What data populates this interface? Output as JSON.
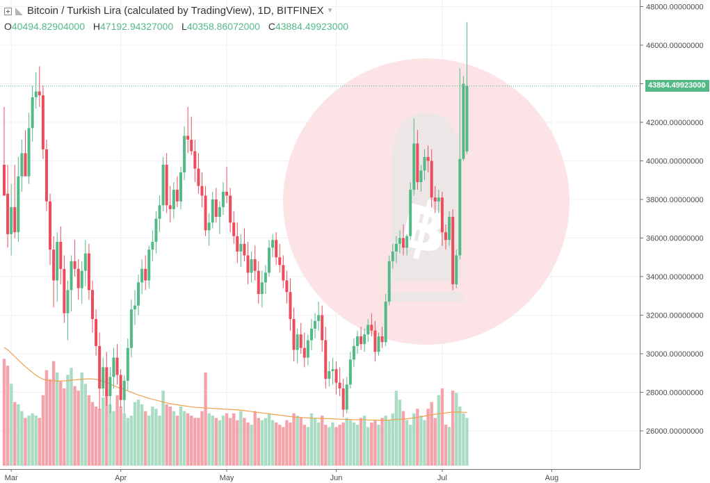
{
  "header": {
    "title": "Bitcoin / Turkish Lira (calculated by TradingView), 1D, BITFINEX",
    "ohlc": [
      {
        "label": "O",
        "value": "40494.82904000"
      },
      {
        "label": "H",
        "value": "47192.94327000"
      },
      {
        "label": "L",
        "value": "40358.86072000"
      },
      {
        "label": "C",
        "value": "43884.49923000"
      }
    ]
  },
  "colors": {
    "up": "#53b987",
    "down": "#eb4d5c",
    "vol_up": "#a9dcc3",
    "vol_down": "#f5a3ab",
    "ma": "#f2a04a",
    "grid": "#eef0f3",
    "watermark": "#fce4e6",
    "price_line": "#53b987"
  },
  "icons": [
    "collapse-icon",
    "visibility-icon",
    "caret-down-icon",
    "bitcoin-watermark-icon"
  ],
  "last_price_label": "43884.49923000",
  "chart_data": {
    "type": "candlestick",
    "title": "Bitcoin / Turkish Lira (calculated by TradingView), 1D, BITFINEX",
    "ylim": [
      24500,
      48500
    ],
    "yticks": [
      "48000.00000000",
      "46000.00000000",
      "44000.00000000",
      "42000.00000000",
      "40000.00000000",
      "38000.00000000",
      "36000.00000000",
      "34000.00000000",
      "32000.00000000",
      "30000.00000000",
      "28000.00000000",
      "26000.00000000"
    ],
    "ytick_values": [
      48000,
      46000,
      44000,
      42000,
      40000,
      38000,
      36000,
      34000,
      32000,
      30000,
      28000,
      26000
    ],
    "xticks": [
      {
        "label": "Mar",
        "day": 2
      },
      {
        "label": "Apr",
        "day": 33
      },
      {
        "label": "May",
        "day": 63
      },
      {
        "label": "Jun",
        "day": 94
      },
      {
        "label": "Jul",
        "day": 124
      },
      {
        "label": "Aug",
        "day": 155
      }
    ],
    "grid": true,
    "last_price": 43884.49923,
    "candles": [
      [
        39800,
        42800,
        38300,
        38200
      ],
      [
        38300,
        39800,
        35500,
        36200
      ],
      [
        36200,
        38800,
        35100,
        37600
      ],
      [
        37600,
        39800,
        36000,
        36300
      ],
      [
        36300,
        40200,
        35800,
        39200
      ],
      [
        39200,
        41100,
        38400,
        40400
      ],
      [
        40400,
        41600,
        39400,
        39200
      ],
      [
        39200,
        42500,
        38800,
        41700
      ],
      [
        41700,
        43900,
        41000,
        43300
      ],
      [
        43300,
        44600,
        42700,
        43600
      ],
      [
        43600,
        44900,
        42800,
        43400
      ],
      [
        43400,
        43900,
        40100,
        40600
      ],
      [
        40600,
        41100,
        37400,
        37900
      ],
      [
        37900,
        38300,
        34600,
        35400
      ],
      [
        35400,
        36100,
        32400,
        33800
      ],
      [
        33800,
        36300,
        32700,
        35800
      ],
      [
        35800,
        36600,
        33600,
        34400
      ],
      [
        34400,
        35100,
        31600,
        32100
      ],
      [
        32100,
        33800,
        30700,
        33300
      ],
      [
        33300,
        35100,
        32200,
        34800
      ],
      [
        34800,
        35900,
        34000,
        34400
      ],
      [
        34400,
        34900,
        32800,
        33400
      ],
      [
        33400,
        34800,
        32600,
        34300
      ],
      [
        34300,
        35900,
        33500,
        35200
      ],
      [
        35200,
        35700,
        32800,
        33300
      ],
      [
        33300,
        33800,
        31100,
        31800
      ],
      [
        31800,
        32300,
        29900,
        30400
      ],
      [
        30400,
        31100,
        27100,
        28200
      ],
      [
        28200,
        29800,
        27800,
        29300
      ],
      [
        29300,
        30100,
        27300,
        27800
      ],
      [
        27800,
        29300,
        26900,
        28800
      ],
      [
        28800,
        30300,
        28200,
        29800
      ],
      [
        29800,
        30500,
        28400,
        28900
      ],
      [
        28900,
        29200,
        27200,
        27600
      ],
      [
        27600,
        28900,
        26900,
        28600
      ],
      [
        28600,
        30800,
        28100,
        30300
      ],
      [
        30300,
        32800,
        29800,
        32300
      ],
      [
        32300,
        33300,
        31500,
        32500
      ],
      [
        32500,
        34100,
        32000,
        33700
      ],
      [
        33700,
        34900,
        33100,
        34400
      ],
      [
        34400,
        35100,
        33300,
        33800
      ],
      [
        33800,
        35600,
        33400,
        35400
      ],
      [
        35400,
        36400,
        34800,
        35800
      ],
      [
        35800,
        37400,
        35200,
        37000
      ],
      [
        37000,
        38200,
        36300,
        37700
      ],
      [
        37700,
        40200,
        37400,
        39800
      ],
      [
        39800,
        40400,
        37300,
        37700
      ],
      [
        37700,
        38700,
        36800,
        37500
      ],
      [
        37500,
        38900,
        37000,
        38500
      ],
      [
        38500,
        39200,
        37600,
        37900
      ],
      [
        37900,
        39700,
        37500,
        39400
      ],
      [
        39400,
        41800,
        39000,
        41300
      ],
      [
        41300,
        42800,
        40400,
        41100
      ],
      [
        41100,
        42300,
        40300,
        40500
      ],
      [
        40500,
        41100,
        38900,
        39600
      ],
      [
        39600,
        40400,
        38300,
        38700
      ],
      [
        38700,
        39400,
        37600,
        38200
      ],
      [
        38200,
        38700,
        36100,
        36400
      ],
      [
        36400,
        37300,
        35600,
        36800
      ],
      [
        36800,
        38400,
        36500,
        38000
      ],
      [
        38000,
        38600,
        36800,
        37100
      ],
      [
        37100,
        37900,
        36200,
        37600
      ],
      [
        37600,
        38900,
        37200,
        38400
      ],
      [
        38400,
        39700,
        37800,
        38200
      ],
      [
        38200,
        38600,
        36300,
        36800
      ],
      [
        36800,
        37400,
        35700,
        36100
      ],
      [
        36100,
        36800,
        34700,
        35300
      ],
      [
        35300,
        36200,
        34500,
        35700
      ],
      [
        35700,
        36500,
        34800,
        35100
      ],
      [
        35100,
        35800,
        33600,
        34200
      ],
      [
        34200,
        35300,
        33700,
        34900
      ],
      [
        34900,
        35600,
        33800,
        34300
      ],
      [
        34300,
        34800,
        32600,
        33100
      ],
      [
        33100,
        34300,
        32400,
        33700
      ],
      [
        33700,
        34600,
        33100,
        34200
      ],
      [
        34200,
        35900,
        34000,
        35500
      ],
      [
        35500,
        36200,
        35000,
        35900
      ],
      [
        35900,
        36300,
        34600,
        35000
      ],
      [
        35000,
        35700,
        34200,
        34600
      ],
      [
        34600,
        35100,
        33400,
        33800
      ],
      [
        33800,
        34300,
        32600,
        33200
      ],
      [
        33200,
        33900,
        31200,
        31800
      ],
      [
        31800,
        32400,
        29600,
        30200
      ],
      [
        30200,
        31300,
        29500,
        31000
      ],
      [
        31000,
        31600,
        30000,
        30300
      ],
      [
        30300,
        31100,
        29300,
        29800
      ],
      [
        29800,
        31000,
        29400,
        30700
      ],
      [
        30700,
        31800,
        30200,
        31300
      ],
      [
        31300,
        32100,
        30800,
        31700
      ],
      [
        31700,
        32700,
        31200,
        32000
      ],
      [
        32000,
        32500,
        30100,
        30700
      ],
      [
        30700,
        31400,
        28200,
        28700
      ],
      [
        28700,
        29600,
        28300,
        29100
      ],
      [
        29100,
        29800,
        28400,
        29200
      ],
      [
        29200,
        29600,
        27900,
        28500
      ],
      [
        28500,
        29300,
        27800,
        28200
      ],
      [
        28200,
        28700,
        26700,
        27100
      ],
      [
        27100,
        28800,
        26900,
        28400
      ],
      [
        28400,
        30100,
        28200,
        29700
      ],
      [
        29700,
        30800,
        29300,
        30400
      ],
      [
        30400,
        31200,
        30000,
        30900
      ],
      [
        30900,
        31400,
        30200,
        30500
      ],
      [
        30500,
        31300,
        30100,
        31000
      ],
      [
        31000,
        31800,
        30600,
        31500
      ],
      [
        31500,
        32100,
        30900,
        31200
      ],
      [
        31200,
        31700,
        29600,
        30100
      ],
      [
        30100,
        31100,
        29900,
        30900
      ],
      [
        30900,
        31400,
        30300,
        30600
      ],
      [
        30600,
        33100,
        30400,
        32700
      ],
      [
        32700,
        35100,
        32500,
        34800
      ],
      [
        34800,
        35700,
        34400,
        35300
      ],
      [
        35300,
        36100,
        34700,
        35700
      ],
      [
        35700,
        36400,
        35200,
        36000
      ],
      [
        36000,
        36700,
        35100,
        35500
      ],
      [
        35500,
        36200,
        35100,
        36100
      ],
      [
        36100,
        38900,
        35900,
        38500
      ],
      [
        38500,
        42200,
        38200,
        40900
      ],
      [
        40900,
        41600,
        38500,
        38900
      ],
      [
        38900,
        39800,
        38400,
        39500
      ],
      [
        39500,
        40600,
        39000,
        40200
      ],
      [
        40200,
        40800,
        39400,
        40000
      ],
      [
        40000,
        40600,
        37600,
        38100
      ],
      [
        38100,
        38700,
        37300,
        37900
      ],
      [
        37900,
        38500,
        37300,
        38100
      ],
      [
        38100,
        38400,
        35600,
        36300
      ],
      [
        36300,
        36700,
        35400,
        35900
      ],
      [
        35900,
        37400,
        35600,
        37100
      ],
      [
        37100,
        37500,
        33300,
        33600
      ],
      [
        33600,
        35400,
        33400,
        35100
      ],
      [
        35100,
        44800,
        34900,
        40100
      ],
      [
        40100,
        44400,
        40000,
        44000
      ],
      [
        40494.83,
        47192.94,
        40358.86,
        43884.5
      ]
    ],
    "volume_ylim": [
      0,
      5200
    ],
    "volume": [
      4700,
      4400,
      3600,
      2800,
      2700,
      2400,
      2100,
      2200,
      2300,
      2200,
      2100,
      3100,
      4200,
      3800,
      4600,
      4100,
      3700,
      3400,
      4000,
      4300,
      3500,
      3300,
      4100,
      3600,
      3100,
      2800,
      2600,
      2500,
      3000,
      3400,
      2700,
      2400,
      3100,
      2600,
      2300,
      2100,
      2200,
      2800,
      2900,
      2700,
      2400,
      2200,
      2600,
      2500,
      2200,
      3300,
      2700,
      2600,
      2400,
      2200,
      2600,
      2400,
      2300,
      2200,
      2100,
      2100,
      2400,
      4100,
      2300,
      2200,
      2100,
      2000,
      2200,
      2300,
      2100,
      2300,
      2000,
      2400,
      2100,
      1900,
      1800,
      2400,
      2100,
      2000,
      2100,
      2300,
      2000,
      1900,
      1800,
      1700,
      2000,
      1900,
      2300,
      2200,
      2100,
      1800,
      1700,
      2300,
      2100,
      1900,
      2200,
      1800,
      1700,
      1900,
      1700,
      1800,
      1900,
      2100,
      2000,
      1900,
      1800,
      2100,
      2200,
      1700,
      1900,
      2000,
      1800,
      2100,
      2200,
      2000,
      2300,
      3300,
      2900,
      2400,
      2000,
      1800,
      2300,
      2500,
      2200,
      2000,
      2500,
      2800,
      2100,
      3100,
      3400,
      1800,
      1700,
      3300,
      3200,
      2600,
      2300,
      2100
    ],
    "moving_average": {
      "name": "",
      "values": [
        5200,
        5100,
        4950,
        4800,
        4650,
        4500,
        4360,
        4230,
        4100,
        3980,
        3880,
        3800,
        3760,
        3740,
        3730,
        3720,
        3720,
        3730,
        3740,
        3760,
        3770,
        3790,
        3800,
        3810,
        3820,
        3810,
        3800,
        3770,
        3720,
        3660,
        3590,
        3520,
        3460,
        3400,
        3350,
        3290,
        3230,
        3170,
        3110,
        3060,
        3010,
        2960,
        2920,
        2880,
        2840,
        2800,
        2760,
        2730,
        2700,
        2680,
        2650,
        2630,
        2610,
        2590,
        2570,
        2560,
        2550,
        2540,
        2530,
        2520,
        2510,
        2500,
        2490,
        2480,
        2470,
        2460,
        2450,
        2440,
        2420,
        2400,
        2380,
        2360,
        2340,
        2320,
        2300,
        2280,
        2260,
        2240,
        2220,
        2200,
        2180,
        2160,
        2140,
        2130,
        2120,
        2110,
        2100,
        2090,
        2090,
        2080,
        2080,
        2070,
        2070,
        2060,
        2050,
        2040,
        2040,
        2030,
        2030,
        2020,
        2020,
        2020,
        2020,
        2010,
        2010,
        2010,
        2000,
        2000,
        2000,
        2010,
        2020,
        2030,
        2040,
        2050,
        2060,
        2080,
        2100,
        2120,
        2150,
        2180,
        2210,
        2240,
        2260,
        2280,
        2300,
        2320,
        2340,
        2350,
        2360,
        2360,
        2350,
        2340
      ]
    }
  }
}
